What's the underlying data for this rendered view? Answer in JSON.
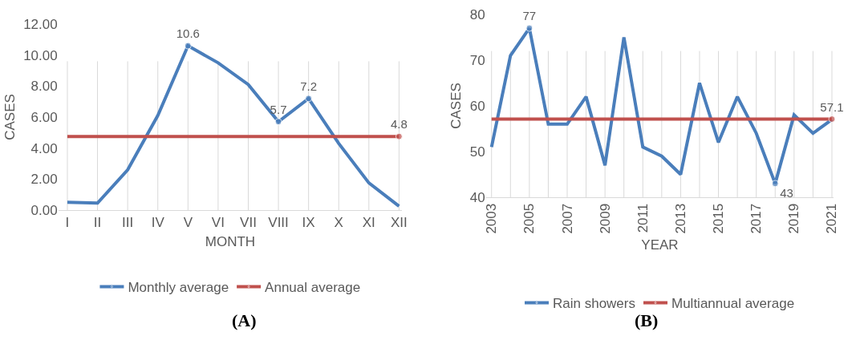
{
  "chart_data": [
    {
      "type": "line",
      "title": "(A)",
      "xlabel": "MONTH",
      "ylabel": "CASES",
      "categories": [
        "I",
        "II",
        "III",
        "IV",
        "V",
        "VI",
        "VII",
        "VIII",
        "IX",
        "X",
        "XI",
        "XII"
      ],
      "series": [
        {
          "name": "Monthly average",
          "color": "#4a7ebb",
          "values": [
            0.5,
            0.45,
            2.6,
            6.1,
            10.6,
            9.5,
            8.1,
            5.7,
            7.2,
            4.3,
            1.75,
            0.25
          ],
          "value_labels": [
            null,
            null,
            null,
            null,
            "10.6",
            null,
            null,
            "5.7",
            "7.2",
            null,
            null,
            null
          ]
        },
        {
          "name": "Annual average",
          "color": "#c0504d",
          "values": [
            4.75,
            4.75,
            4.75,
            4.75,
            4.75,
            4.75,
            4.75,
            4.75,
            4.75,
            4.75,
            4.75,
            4.75
          ],
          "value_labels": [
            null,
            null,
            null,
            null,
            null,
            null,
            null,
            null,
            null,
            null,
            null,
            "4.8"
          ]
        }
      ],
      "ylim": [
        0,
        12
      ],
      "yticks": [
        {
          "value": 0,
          "label": "0.00"
        },
        {
          "value": 2,
          "label": "2.00"
        },
        {
          "value": 4,
          "label": "4.00"
        },
        {
          "value": 6,
          "label": "6.00"
        },
        {
          "value": 8,
          "label": "8.00"
        },
        {
          "value": 10,
          "label": "10.00"
        },
        {
          "value": 12,
          "label": "12.00"
        }
      ],
      "grid": "x",
      "legend": "bottom",
      "marker": "none",
      "line_style": "solid"
    },
    {
      "type": "line",
      "title": "(B)",
      "xlabel": "YEAR",
      "ylabel": "CASES",
      "categories": [
        "2003",
        null,
        "2005",
        null,
        "2007",
        null,
        "2009",
        null,
        "2011",
        null,
        "2013",
        null,
        "2015",
        null,
        "2017",
        null,
        "2019",
        null,
        "2021"
      ],
      "series": [
        {
          "name": "Rain showers",
          "color": "#4a7ebb",
          "values": [
            51,
            71,
            77,
            56,
            56,
            62,
            47,
            75,
            51,
            49,
            45,
            65,
            52,
            62,
            54,
            43,
            58,
            54,
            57
          ],
          "value_labels": [
            null,
            null,
            "77",
            null,
            null,
            null,
            null,
            null,
            null,
            null,
            null,
            null,
            null,
            null,
            null,
            "43",
            null,
            null,
            null
          ]
        },
        {
          "name": "Multiannual average",
          "color": "#c0504d",
          "values": [
            57.1,
            57.1,
            57.1,
            57.1,
            57.1,
            57.1,
            57.1,
            57.1,
            57.1,
            57.1,
            57.1,
            57.1,
            57.1,
            57.1,
            57.1,
            57.1,
            57.1,
            57.1,
            57.1
          ],
          "value_labels": [
            null,
            null,
            null,
            null,
            null,
            null,
            null,
            null,
            null,
            null,
            null,
            null,
            null,
            null,
            null,
            null,
            null,
            null,
            "57.1"
          ]
        }
      ],
      "ylim": [
        40,
        80
      ],
      "yticks": [
        40,
        50,
        60,
        70,
        80
      ],
      "grid": "x",
      "legend": "bottom",
      "marker": "none",
      "line_style": "solid"
    }
  ]
}
